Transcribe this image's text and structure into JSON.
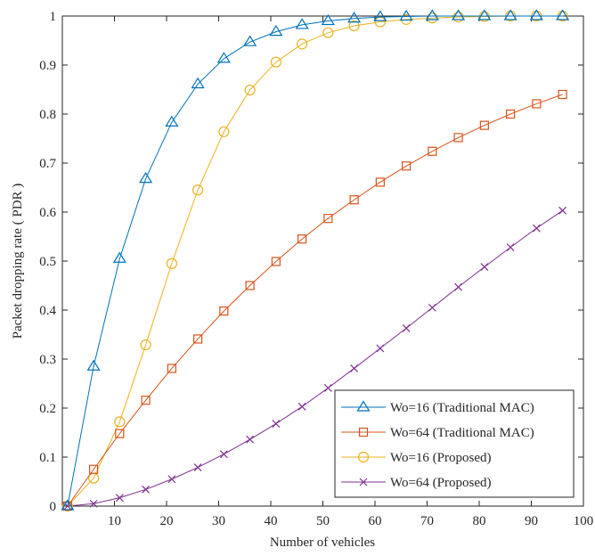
{
  "chart_data": {
    "type": "line",
    "xlabel": "Number of vehicles",
    "ylabel": "Packet dropping rate ( PDR )",
    "xlim": [
      0,
      100
    ],
    "ylim": [
      0,
      1
    ],
    "xticks": [
      10,
      20,
      30,
      40,
      50,
      60,
      70,
      80,
      90,
      100
    ],
    "yticks": [
      0,
      0.1,
      0.2,
      0.3,
      0.4,
      0.5,
      0.6,
      0.7,
      0.8,
      0.9,
      1
    ],
    "xtick_labels": [
      "10",
      "20",
      "30",
      "40",
      "50",
      "60",
      "70",
      "80",
      "90",
      "100"
    ],
    "ytick_labels": [
      "0",
      "0.1",
      "0.2",
      "0.3",
      "0.4",
      "0.5",
      "0.6",
      "0.7",
      "0.8",
      "0.9",
      "1"
    ],
    "grid": false,
    "legend_position": "bottom-right",
    "x": [
      1,
      6,
      11,
      16,
      21,
      26,
      31,
      36,
      41,
      46,
      51,
      56,
      61,
      66,
      71,
      76,
      81,
      86,
      91,
      96
    ],
    "series": [
      {
        "name": "Wo=16 (Traditional MAC)",
        "color": "#0072BD",
        "marker": "triangle",
        "values": [
          0,
          0.285,
          0.505,
          0.668,
          0.783,
          0.861,
          0.913,
          0.947,
          0.968,
          0.982,
          0.99,
          0.995,
          0.998,
          0.999,
          1,
          1,
          1,
          1,
          1,
          1
        ]
      },
      {
        "name": "Wo=64 (Traditional MAC)",
        "color": "#D95319",
        "marker": "square",
        "values": [
          0,
          0.075,
          0.148,
          0.216,
          0.281,
          0.341,
          0.398,
          0.45,
          0.499,
          0.545,
          0.587,
          0.625,
          0.661,
          0.694,
          0.724,
          0.752,
          0.777,
          0.8,
          0.821,
          0.84
        ]
      },
      {
        "name": "Wo=16 (Proposed)",
        "color": "#EDB120",
        "marker": "circle",
        "values": [
          0,
          0.057,
          0.172,
          0.329,
          0.495,
          0.645,
          0.764,
          0.849,
          0.906,
          0.943,
          0.966,
          0.98,
          0.988,
          0.993,
          0.996,
          0.998,
          0.999,
          1,
          1,
          1
        ]
      },
      {
        "name": "Wo=64 (Proposed)",
        "color": "#7E2F8E",
        "marker": "x",
        "values": [
          0,
          0.005,
          0.017,
          0.034,
          0.055,
          0.079,
          0.106,
          0.136,
          0.168,
          0.203,
          0.241,
          0.281,
          0.322,
          0.363,
          0.405,
          0.447,
          0.488,
          0.528,
          0.567,
          0.603
        ]
      }
    ]
  }
}
